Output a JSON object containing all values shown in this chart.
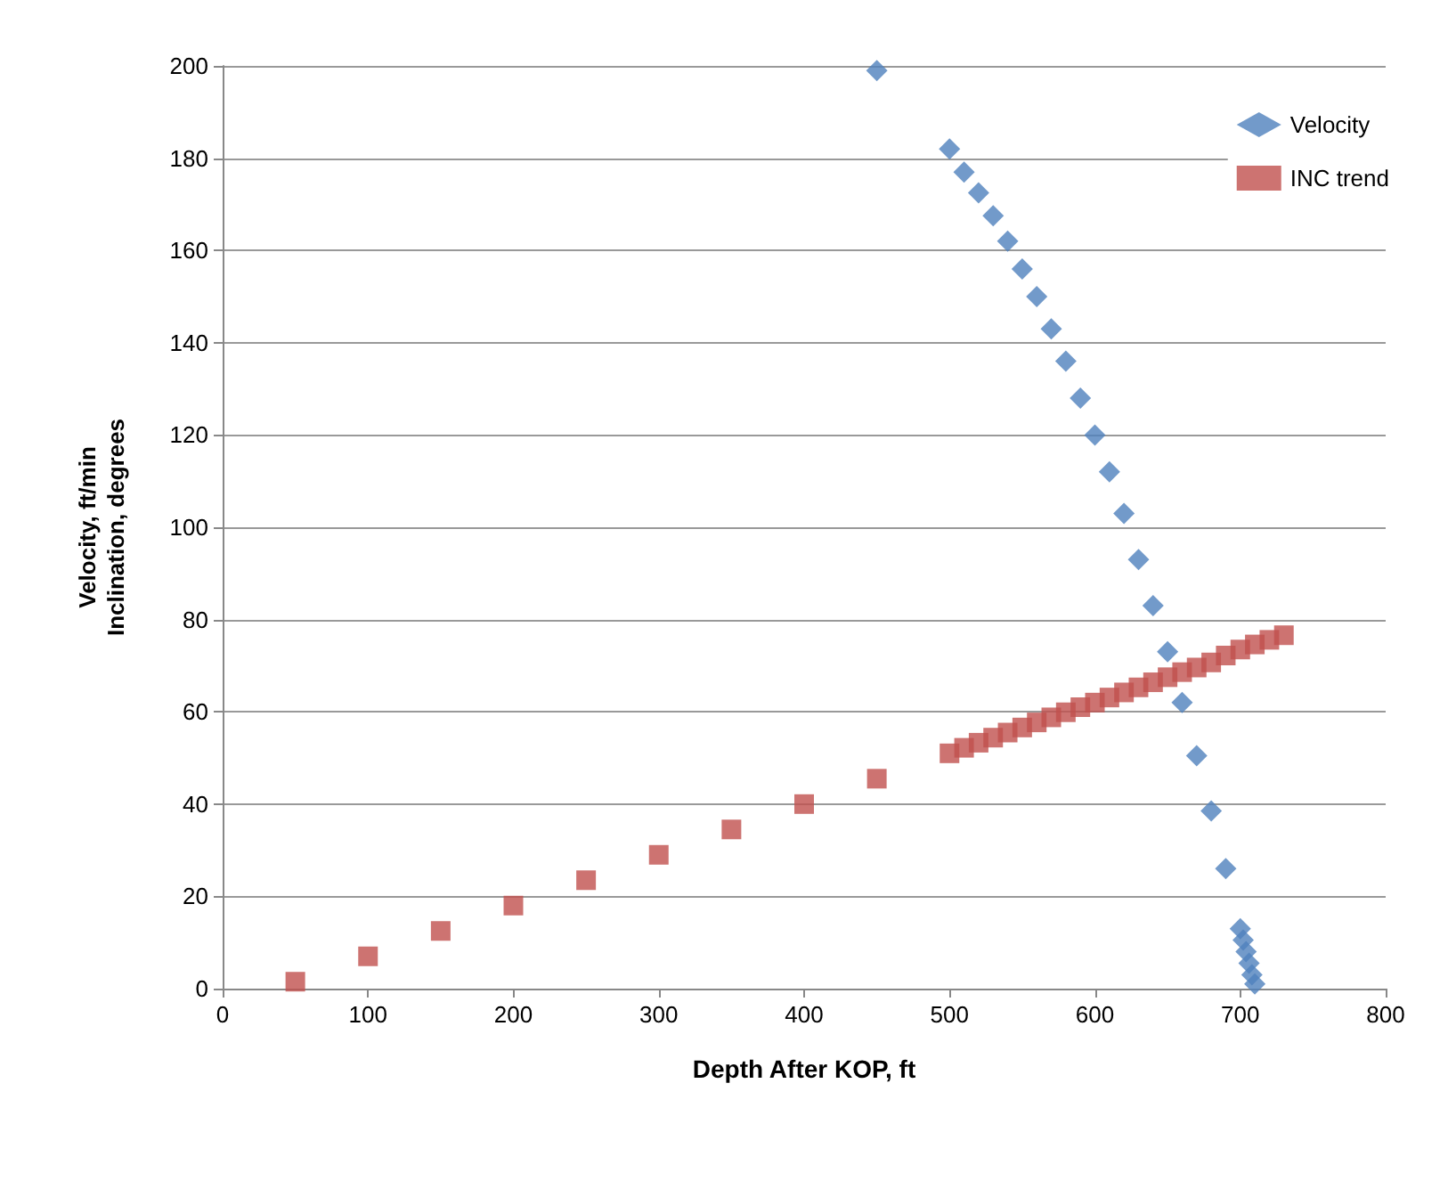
{
  "chart_data": {
    "type": "scatter",
    "xlabel": "Depth After KOP, ft",
    "ylabel": "Velocity, ft/min\nInclination, degrees",
    "xlim": [
      0,
      800
    ],
    "xticks": [
      0,
      100,
      200,
      300,
      400,
      500,
      600,
      700,
      800
    ],
    "ylim": [
      0,
      200
    ],
    "yticks": [
      0,
      20,
      40,
      60,
      80,
      100,
      120,
      140,
      160,
      180,
      200
    ],
    "grid": "y",
    "legend": "top right",
    "series": [
      {
        "name": "Velocity",
        "color": "#4f81bd",
        "marker": "diamond",
        "x": [
          450,
          500,
          510,
          520,
          530,
          540,
          550,
          560,
          570,
          580,
          590,
          600,
          610,
          620,
          630,
          640,
          650,
          660,
          670,
          680,
          690,
          700,
          702,
          704,
          706,
          708,
          710
        ],
        "values": [
          199,
          182,
          177,
          172.5,
          167.5,
          162,
          156,
          150,
          143,
          136,
          128,
          120,
          112,
          103,
          93,
          83,
          73,
          62,
          50.5,
          38.5,
          26,
          13,
          10.5,
          8,
          5.5,
          3,
          1
        ]
      },
      {
        "name": "INC trend",
        "color": "#c0504d",
        "marker": "square",
        "x": [
          50,
          100,
          150,
          200,
          250,
          300,
          350,
          400,
          450,
          500,
          510,
          520,
          530,
          540,
          550,
          560,
          570,
          580,
          590,
          600,
          610,
          620,
          630,
          640,
          650,
          660,
          670,
          680,
          690,
          700,
          710,
          720,
          730
        ],
        "values": [
          1.5,
          7,
          12.5,
          18,
          23.5,
          29,
          34.5,
          40,
          45.5,
          51,
          52.2,
          53.3,
          54.4,
          55.5,
          56.6,
          57.7,
          58.8,
          59.9,
          61,
          62,
          63.1,
          64.2,
          65.3,
          66.4,
          67.5,
          68.6,
          69.6,
          70.7,
          72.2,
          73.5,
          74.6,
          75.6,
          76.6
        ]
      }
    ]
  }
}
